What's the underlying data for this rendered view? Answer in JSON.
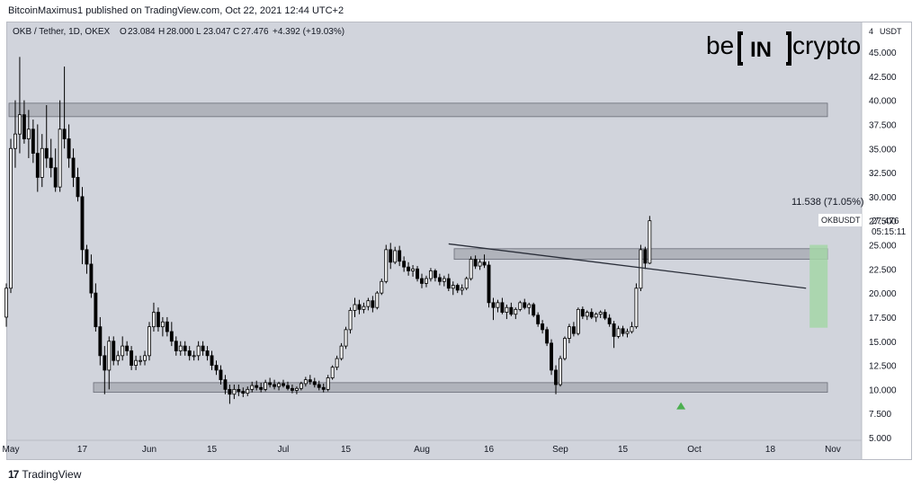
{
  "header": {
    "credit": "BitcoinMaximus1 published on TradingView.com, Oct 22, 2021 12:44 UTC+2"
  },
  "footer": {
    "logo": "17",
    "brand": "TradingView"
  },
  "brand": {
    "logo_left": "be",
    "logo_mid": "IN",
    "logo_right": "crypto"
  },
  "colors": {
    "background": "#d1d4dc",
    "up_candle": "#ffffff",
    "down_candle": "#000000",
    "range_box": "#9598a1",
    "projection_box": "#a5d6a7",
    "arrow": "#4caf50",
    "trendline": "#2a2e39"
  },
  "chart_data": {
    "type": "candlestick",
    "symbol_line": {
      "name": "OKB / Tether, 1D, OKEX",
      "open": "23.084",
      "high": "28.000",
      "low": "23.047",
      "close": "27.476",
      "change": "+4.392 (+19.03%)"
    },
    "unit": "USDT",
    "y_ticks": [
      "45.000",
      "42.500",
      "40.000",
      "37.500",
      "35.000",
      "32.500",
      "30.000",
      "27.500",
      "25.000",
      "22.500",
      "20.000",
      "17.500",
      "15.000",
      "12.500",
      "10.000",
      "7.500",
      "5.000"
    ],
    "ylim": [
      5,
      47.5
    ],
    "x_ticks": [
      "May",
      "17",
      "Jun",
      "15",
      "Jul",
      "15",
      "Aug",
      "16",
      "Sep",
      "15",
      "Oct",
      "18",
      "Nov"
    ],
    "price_label": {
      "ticker": "OKBUSDT",
      "price": "27.476",
      "countdown": "05:15:11"
    },
    "measure_label": "11.538 (71.05%)",
    "horizontal_zones": [
      {
        "name": "resistance-top",
        "low": 38.3,
        "high": 39.7
      },
      {
        "name": "resistance-mid",
        "low": 23.5,
        "high": 24.6
      },
      {
        "name": "support",
        "low": 9.7,
        "high": 10.7
      }
    ],
    "descending_trendline": {
      "start": {
        "date": "2021-08-07",
        "value": 25.1
      },
      "end": {
        "date": "2021-10-26",
        "value": 20.5
      }
    },
    "projection": {
      "start_date": "2021-10-26",
      "end_date": "2021-10-28",
      "low": 16.4,
      "high": 25.0
    },
    "marker": {
      "date": "2021-09-28",
      "value": 8.2,
      "shape": "up-arrow"
    },
    "candles": [
      [
        17.5,
        21.0,
        16.5,
        20.5
      ],
      [
        20.5,
        36.0,
        20.0,
        35.0
      ],
      [
        35.0,
        40.0,
        33.0,
        36.5
      ],
      [
        36.5,
        44.5,
        34.5,
        38.5
      ],
      [
        38.5,
        40.0,
        35.5,
        36.0
      ],
      [
        36.0,
        39.0,
        34.0,
        37.0
      ],
      [
        37.0,
        38.0,
        33.5,
        34.5
      ],
      [
        34.5,
        37.5,
        30.5,
        32.0
      ],
      [
        32.0,
        36.5,
        31.0,
        35.0
      ],
      [
        35.0,
        39.5,
        33.0,
        34.0
      ],
      [
        34.0,
        36.0,
        32.0,
        33.0
      ],
      [
        33.0,
        35.0,
        30.5,
        31.0
      ],
      [
        31.0,
        40.0,
        30.5,
        37.0
      ],
      [
        37.0,
        43.5,
        35.0,
        36.0
      ],
      [
        36.0,
        37.5,
        33.0,
        34.0
      ],
      [
        34.0,
        35.0,
        31.0,
        32.0
      ],
      [
        32.0,
        33.0,
        29.5,
        30.0
      ],
      [
        30.0,
        31.0,
        23.0,
        24.5
      ],
      [
        24.5,
        25.0,
        22.0,
        23.0
      ],
      [
        23.0,
        24.0,
        19.5,
        20.0
      ],
      [
        20.0,
        21.0,
        16.0,
        16.5
      ],
      [
        16.5,
        17.5,
        12.5,
        13.5
      ],
      [
        13.5,
        14.5,
        9.5,
        12.0
      ],
      [
        12.0,
        15.5,
        10.0,
        15.0
      ],
      [
        15.0,
        15.5,
        12.5,
        13.0
      ],
      [
        13.0,
        14.0,
        12.5,
        13.5
      ],
      [
        13.5,
        15.5,
        13.0,
        14.5
      ],
      [
        14.5,
        15.0,
        13.5,
        14.0
      ],
      [
        14.0,
        14.5,
        12.0,
        12.5
      ],
      [
        12.5,
        13.5,
        12.0,
        13.0
      ],
      [
        13.0,
        13.5,
        12.5,
        13.0
      ],
      [
        13.0,
        14.0,
        12.5,
        13.5
      ],
      [
        13.5,
        17.0,
        13.0,
        16.5
      ],
      [
        16.5,
        19.0,
        16.0,
        18.0
      ],
      [
        18.0,
        18.5,
        16.0,
        16.5
      ],
      [
        16.5,
        17.5,
        15.5,
        17.0
      ],
      [
        17.0,
        17.5,
        15.5,
        16.0
      ],
      [
        16.0,
        17.0,
        14.5,
        15.0
      ],
      [
        15.0,
        15.5,
        13.5,
        14.0
      ],
      [
        14.0,
        15.0,
        13.5,
        14.5
      ],
      [
        14.5,
        15.0,
        13.5,
        14.0
      ],
      [
        14.0,
        14.5,
        13.0,
        13.5
      ],
      [
        13.5,
        14.0,
        13.0,
        13.5
      ],
      [
        13.5,
        15.0,
        13.0,
        14.5
      ],
      [
        14.5,
        15.0,
        13.5,
        14.0
      ],
      [
        14.0,
        14.5,
        13.0,
        13.5
      ],
      [
        13.5,
        14.0,
        12.0,
        12.5
      ],
      [
        12.5,
        13.0,
        11.5,
        12.0
      ],
      [
        12.0,
        12.5,
        10.5,
        11.0
      ],
      [
        11.0,
        11.5,
        9.5,
        10.0
      ],
      [
        10.0,
        10.5,
        8.5,
        9.5
      ],
      [
        9.5,
        10.5,
        9.0,
        10.0
      ],
      [
        10.0,
        10.5,
        9.3,
        9.8
      ],
      [
        9.8,
        10.2,
        9.2,
        9.6
      ],
      [
        9.6,
        10.3,
        9.3,
        10.0
      ],
      [
        10.0,
        10.8,
        9.7,
        10.4
      ],
      [
        10.4,
        10.9,
        9.9,
        10.2
      ],
      [
        10.2,
        10.7,
        9.7,
        10.0
      ],
      [
        10.0,
        11.0,
        9.8,
        10.7
      ],
      [
        10.7,
        11.2,
        10.2,
        10.5
      ],
      [
        10.5,
        11.0,
        10.0,
        10.3
      ],
      [
        10.3,
        10.8,
        9.9,
        10.6
      ],
      [
        10.6,
        11.0,
        10.2,
        10.4
      ],
      [
        10.4,
        10.8,
        9.9,
        10.1
      ],
      [
        10.1,
        10.5,
        9.6,
        9.9
      ],
      [
        9.9,
        10.3,
        9.5,
        10.1
      ],
      [
        10.1,
        10.8,
        9.9,
        10.6
      ],
      [
        10.6,
        11.3,
        10.3,
        11.0
      ],
      [
        11.0,
        11.5,
        10.5,
        10.8
      ],
      [
        10.8,
        11.2,
        10.2,
        10.5
      ],
      [
        10.5,
        10.9,
        9.9,
        10.2
      ],
      [
        10.2,
        10.6,
        9.7,
        10.0
      ],
      [
        10.0,
        11.5,
        9.8,
        11.2
      ],
      [
        11.2,
        12.5,
        11.0,
        12.3
      ],
      [
        12.3,
        13.5,
        12.0,
        13.2
      ],
      [
        13.2,
        14.8,
        13.0,
        14.5
      ],
      [
        14.5,
        16.5,
        14.2,
        16.2
      ],
      [
        16.2,
        18.5,
        15.8,
        18.2
      ],
      [
        18.2,
        19.5,
        17.5,
        18.8
      ],
      [
        18.8,
        19.3,
        17.8,
        18.3
      ],
      [
        18.3,
        19.0,
        17.9,
        18.6
      ],
      [
        18.6,
        19.5,
        18.2,
        19.2
      ],
      [
        19.2,
        19.7,
        18.0,
        18.5
      ],
      [
        18.5,
        20.2,
        18.3,
        20.0
      ],
      [
        20.0,
        21.5,
        19.8,
        21.2
      ],
      [
        21.2,
        25.0,
        21.0,
        24.5
      ],
      [
        24.5,
        25.2,
        22.5,
        23.2
      ],
      [
        23.2,
        24.8,
        23.0,
        24.4
      ],
      [
        24.4,
        24.9,
        22.8,
        23.3
      ],
      [
        23.3,
        23.8,
        22.2,
        22.7
      ],
      [
        22.7,
        23.2,
        21.8,
        22.3
      ],
      [
        22.3,
        22.9,
        21.7,
        22.5
      ],
      [
        22.5,
        22.8,
        21.2,
        21.5
      ],
      [
        21.5,
        22.0,
        20.5,
        21.0
      ],
      [
        21.0,
        21.8,
        20.6,
        21.5
      ],
      [
        21.5,
        22.6,
        21.2,
        22.3
      ],
      [
        22.3,
        22.5,
        21.2,
        21.6
      ],
      [
        21.6,
        22.0,
        20.8,
        21.2
      ],
      [
        21.2,
        21.8,
        20.7,
        21.5
      ],
      [
        21.5,
        22.0,
        20.2,
        20.5
      ],
      [
        20.5,
        21.2,
        19.8,
        20.8
      ],
      [
        20.8,
        21.0,
        20.0,
        20.3
      ],
      [
        20.3,
        20.9,
        19.8,
        20.5
      ],
      [
        20.5,
        21.7,
        20.3,
        21.5
      ],
      [
        21.5,
        23.8,
        21.3,
        23.5
      ],
      [
        23.5,
        23.9,
        22.5,
        22.8
      ],
      [
        22.8,
        23.5,
        22.4,
        23.2
      ],
      [
        23.2,
        24.0,
        22.6,
        22.9
      ],
      [
        22.9,
        23.3,
        18.5,
        19.0
      ],
      [
        19.0,
        19.5,
        17.2,
        18.5
      ],
      [
        18.5,
        19.3,
        18.0,
        19.0
      ],
      [
        19.0,
        19.5,
        17.8,
        18.0
      ],
      [
        18.0,
        18.8,
        17.3,
        18.5
      ],
      [
        18.5,
        19.0,
        17.6,
        17.8
      ],
      [
        17.8,
        18.5,
        17.3,
        18.3
      ],
      [
        18.3,
        19.2,
        18.1,
        19.0
      ],
      [
        19.0,
        19.4,
        18.3,
        18.5
      ],
      [
        18.5,
        19.0,
        17.8,
        18.8
      ],
      [
        18.8,
        19.0,
        17.5,
        17.7
      ],
      [
        17.7,
        18.0,
        16.5,
        16.8
      ],
      [
        16.8,
        17.2,
        15.8,
        16.2
      ],
      [
        16.2,
        16.5,
        14.5,
        14.8
      ],
      [
        14.8,
        15.2,
        11.5,
        12.0
      ],
      [
        12.0,
        12.5,
        9.5,
        10.5
      ],
      [
        10.5,
        13.5,
        10.3,
        13.2
      ],
      [
        13.2,
        15.5,
        13.0,
        15.3
      ],
      [
        15.3,
        16.8,
        14.8,
        16.5
      ],
      [
        16.5,
        17.0,
        15.5,
        15.8
      ],
      [
        15.8,
        18.5,
        15.6,
        18.3
      ],
      [
        18.3,
        18.6,
        17.3,
        17.6
      ],
      [
        17.6,
        18.2,
        17.2,
        18.0
      ],
      [
        18.0,
        18.4,
        17.3,
        17.5
      ],
      [
        17.5,
        18.0,
        17.0,
        17.8
      ],
      [
        17.8,
        18.2,
        17.4,
        18.0
      ],
      [
        18.0,
        18.3,
        17.2,
        17.4
      ],
      [
        17.4,
        17.8,
        16.5,
        16.8
      ],
      [
        16.8,
        17.1,
        14.3,
        15.5
      ],
      [
        15.5,
        16.6,
        15.3,
        16.3
      ],
      [
        16.3,
        16.6,
        15.5,
        15.8
      ],
      [
        15.8,
        16.3,
        15.4,
        16.0
      ],
      [
        16.0,
        17.0,
        15.8,
        16.5
      ],
      [
        16.5,
        21.0,
        16.3,
        20.5
      ],
      [
        20.5,
        25.0,
        20.2,
        24.5
      ],
      [
        24.5,
        24.8,
        22.5,
        23.1
      ],
      [
        23.1,
        28.0,
        23.0,
        27.5
      ]
    ]
  }
}
